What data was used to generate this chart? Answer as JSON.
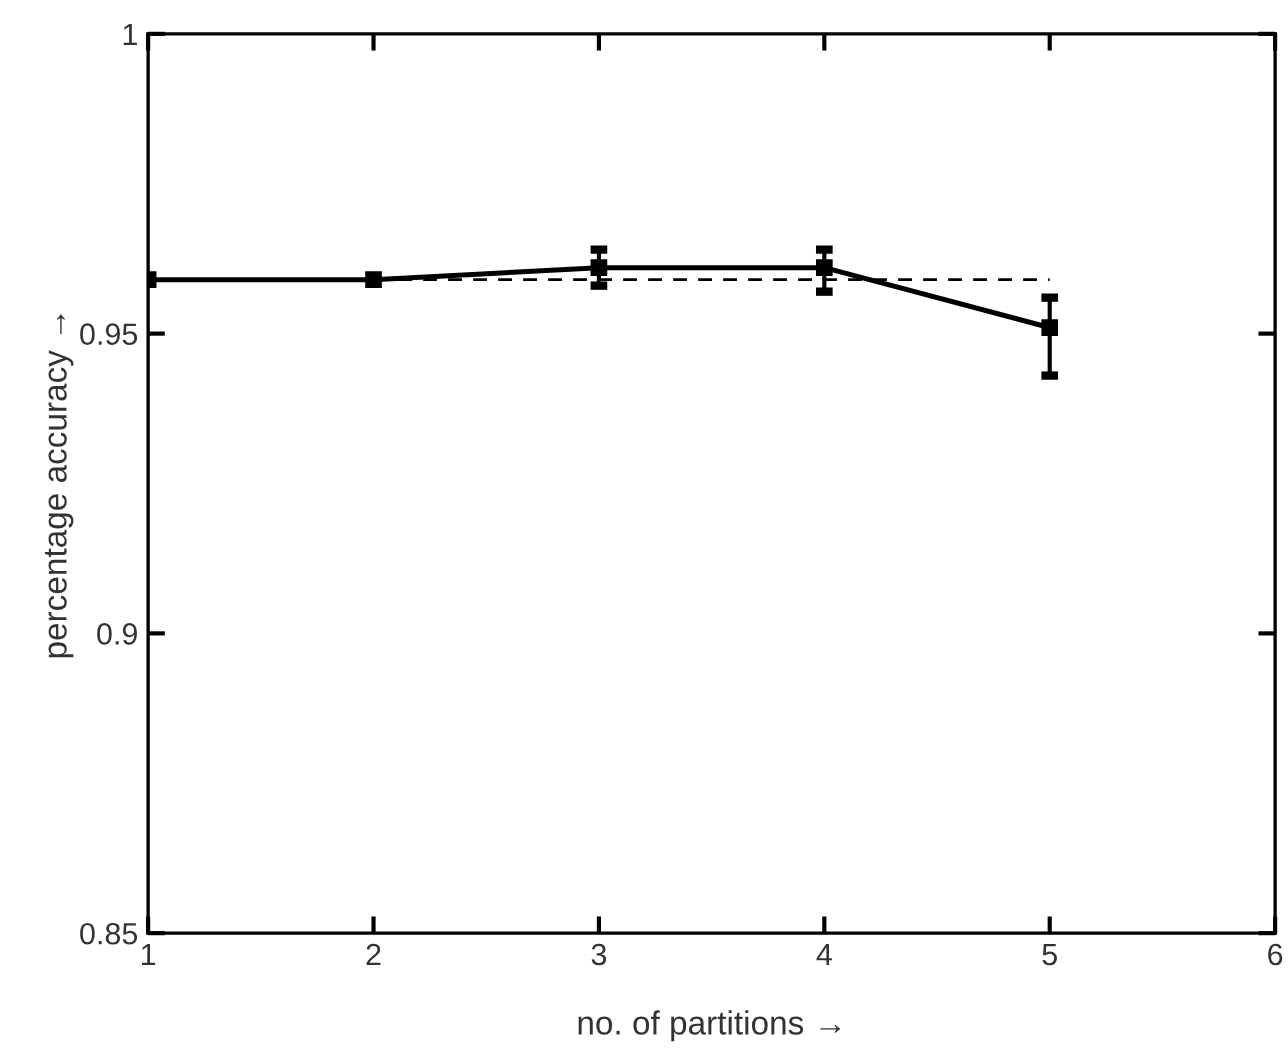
{
  "chart_data": {
    "type": "line",
    "xlabel": "no. of partitions →",
    "ylabel": "percentage accuracy →",
    "xlim": [
      1,
      6
    ],
    "ylim": [
      0.85,
      1
    ],
    "xticks": [
      1,
      2,
      3,
      4,
      5,
      6
    ],
    "yticks": [
      0.85,
      0.9,
      0.95,
      1
    ],
    "grid": false,
    "legend": false,
    "series": [
      {
        "x": [
          1,
          5
        ],
        "values": [
          0.959,
          0.959
        ],
        "color": "#000000",
        "line_style": "dashed"
      },
      {
        "x": [
          1,
          2,
          3,
          4,
          5
        ],
        "values": [
          0.959,
          0.959,
          0.961,
          0.961,
          0.951
        ],
        "color": "#000000",
        "line_style": "solid",
        "marker": "square",
        "errors": [
          null,
          null,
          [
            0.958,
            0.964
          ],
          [
            0.957,
            0.964
          ],
          [
            0.943,
            0.956
          ]
        ]
      }
    ]
  }
}
